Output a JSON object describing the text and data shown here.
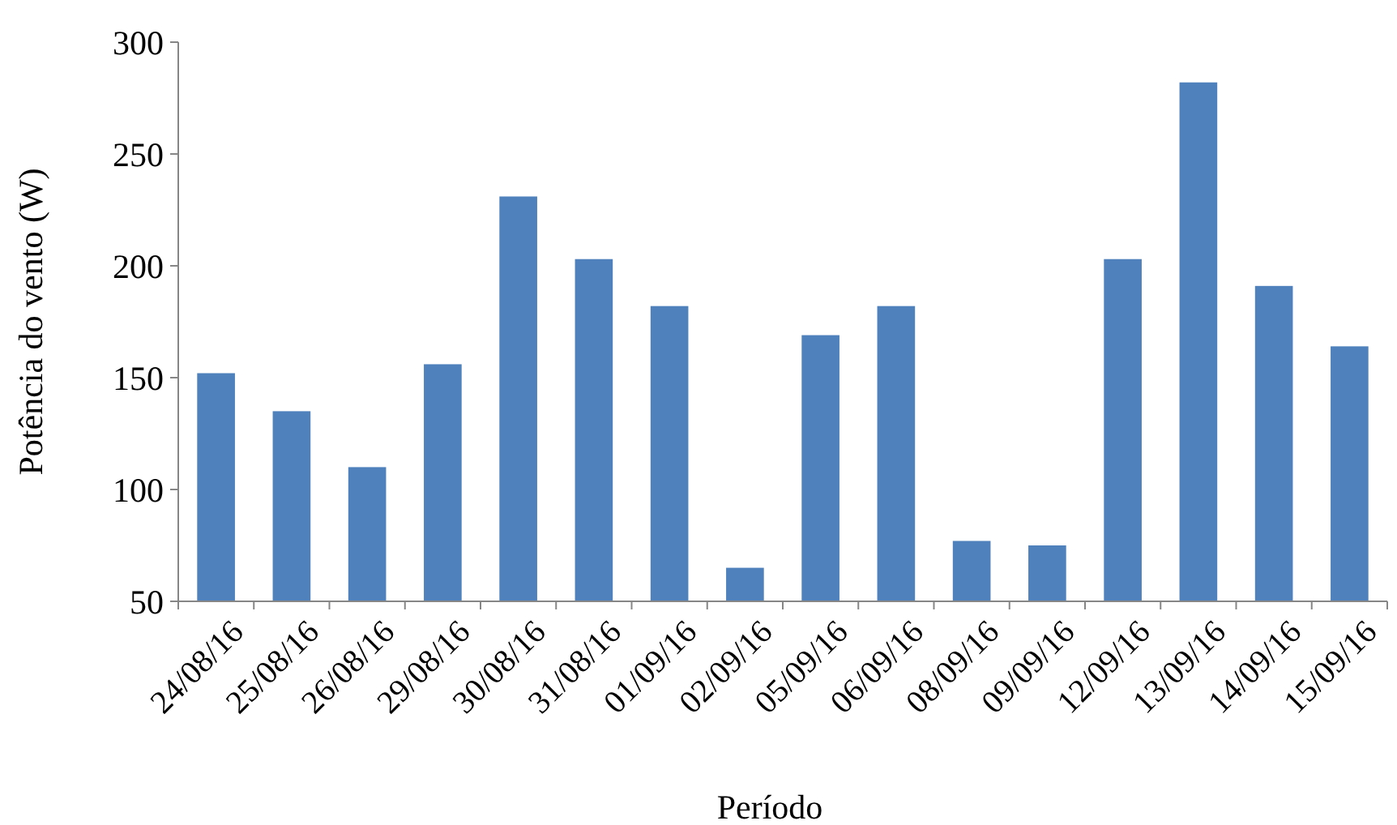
{
  "chart_data": {
    "type": "bar",
    "xlabel": "Período",
    "ylabel": "Potência do vento (W)",
    "categories": [
      "24/08/16",
      "25/08/16",
      "26/08/16",
      "29/08/16",
      "30/08/16",
      "31/08/16",
      "01/09/16",
      "02/09/16",
      "05/09/16",
      "06/09/16",
      "08/09/16",
      "09/09/16",
      "12/09/16",
      "13/09/16",
      "14/09/16",
      "15/09/16"
    ],
    "values": [
      152,
      135,
      110,
      156,
      231,
      203,
      182,
      65,
      169,
      182,
      77,
      75,
      203,
      282,
      191,
      164
    ],
    "color": "#4f81bd",
    "ylim": [
      50,
      300
    ],
    "yticks": [
      50,
      100,
      150,
      200,
      250,
      300
    ],
    "grid": false
  }
}
